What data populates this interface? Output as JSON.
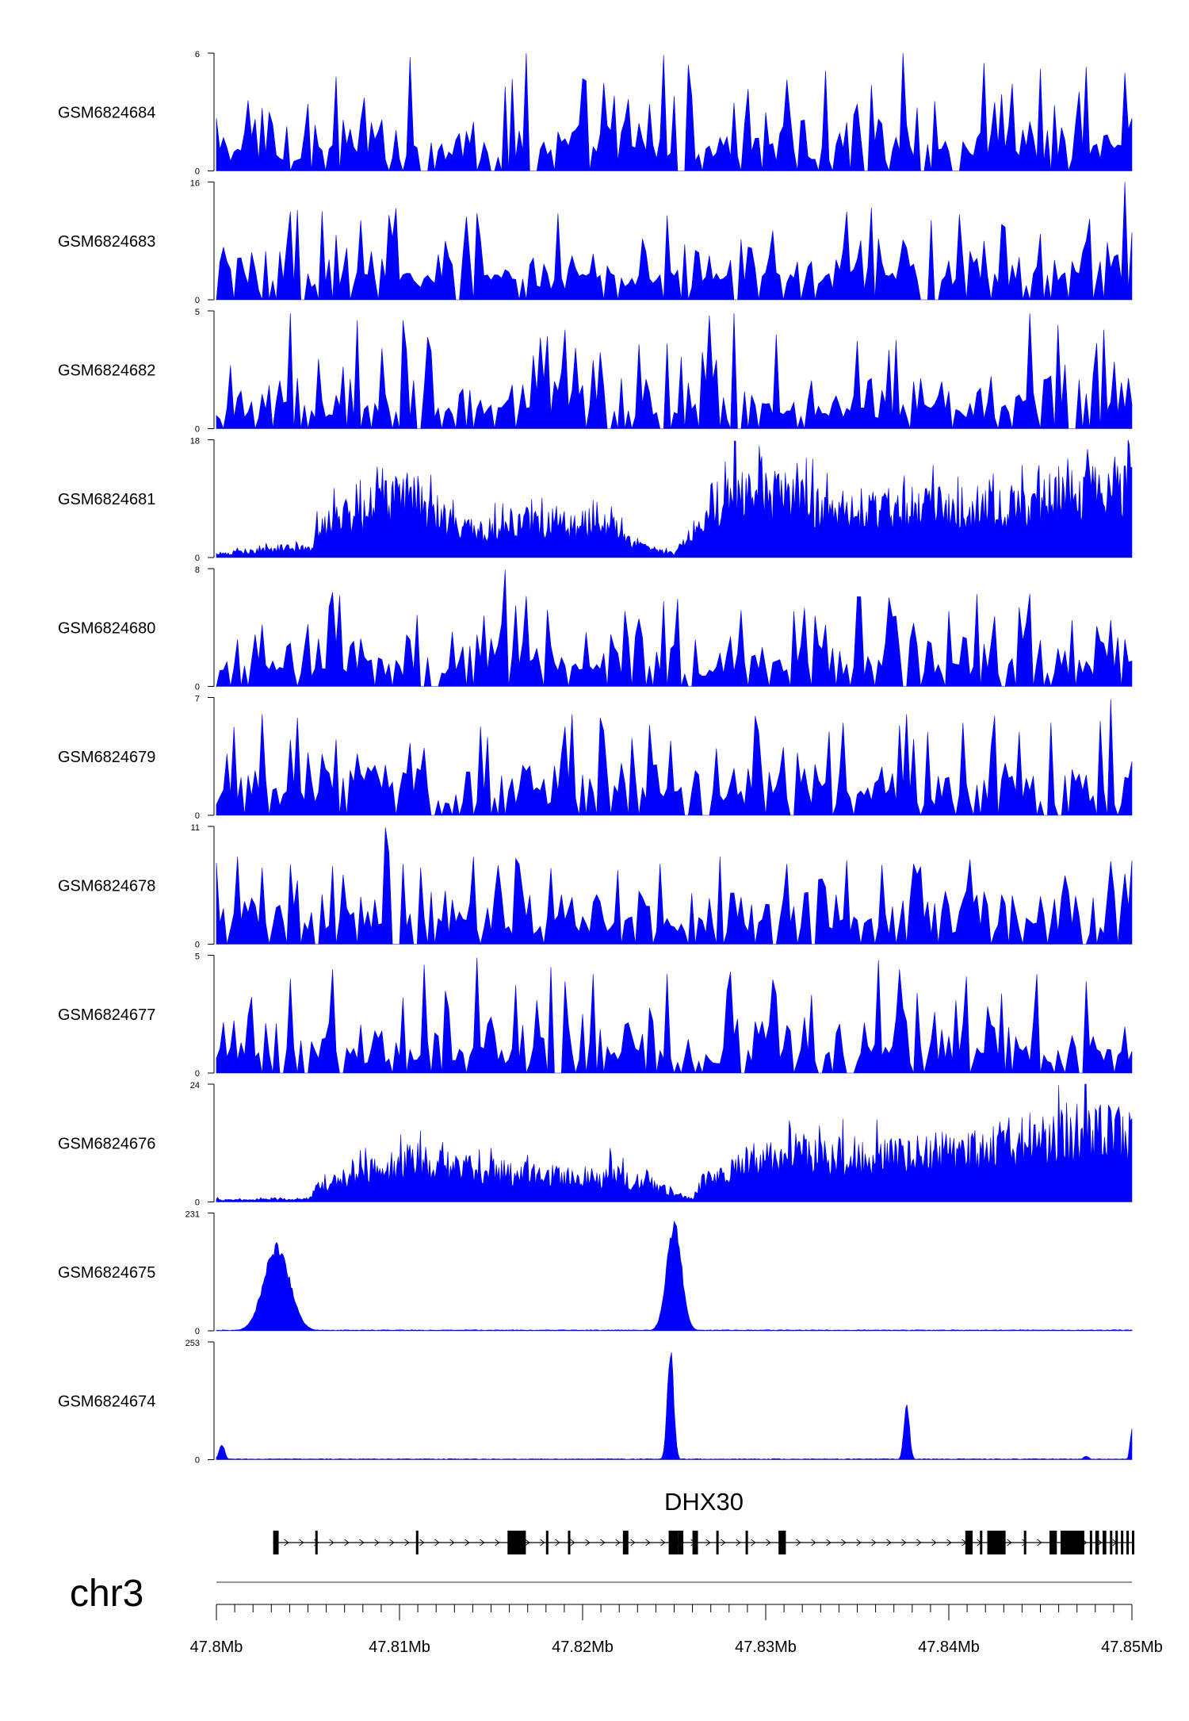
{
  "chart_data": {
    "type": "area",
    "chromosome": "chr3",
    "x_range_mb": [
      47.8,
      47.85
    ],
    "x_ticks": [
      {
        "value": 47.8,
        "label": "47.8Mb"
      },
      {
        "value": 47.81,
        "label": "47.81Mb"
      },
      {
        "value": 47.82,
        "label": "47.82Mb"
      },
      {
        "value": 47.83,
        "label": "47.83Mb"
      },
      {
        "value": 47.84,
        "label": "47.84Mb"
      },
      {
        "value": 47.85,
        "label": "47.85Mb"
      }
    ],
    "color": "#0000ff",
    "gene": {
      "name": "DHX30",
      "strand": "+",
      "start_mb": 47.8031,
      "end_mb": 47.85,
      "exons_mb": [
        [
          47.8031,
          47.8034
        ],
        [
          47.8054,
          47.8055
        ],
        [
          47.8109,
          47.811
        ],
        [
          47.8159,
          47.8169
        ],
        [
          47.818,
          47.8181
        ],
        [
          47.8192,
          47.8193
        ],
        [
          47.8222,
          47.8225
        ],
        [
          47.8247,
          47.8252
        ],
        [
          47.8252,
          47.8255
        ],
        [
          47.826,
          47.8263
        ],
        [
          47.8273,
          47.8274
        ],
        [
          47.8289,
          47.829
        ],
        [
          47.8307,
          47.8311
        ],
        [
          47.8409,
          47.8413
        ],
        [
          47.8417,
          47.8418
        ],
        [
          47.8421,
          47.8431
        ],
        [
          47.8441,
          47.8442
        ],
        [
          47.8455,
          47.8459
        ],
        [
          47.8461,
          47.8474
        ],
        [
          47.8477,
          47.8478
        ],
        [
          47.848,
          47.8482
        ],
        [
          47.8484,
          47.8486
        ],
        [
          47.8488,
          47.8489
        ],
        [
          47.8491,
          47.8492
        ],
        [
          47.8494,
          47.8495
        ],
        [
          47.8497,
          47.8498
        ],
        [
          47.85,
          47.8501
        ]
      ]
    },
    "series": [
      {
        "name": "GSM6824684",
        "ymax": 6,
        "profile": "sparse",
        "peaks": [
          [
            47.8025,
            3.2
          ],
          [
            47.8065,
            4.8
          ],
          [
            47.8105,
            5.8
          ],
          [
            47.817,
            6.0
          ],
          [
            47.8245,
            5.9
          ],
          [
            47.8258,
            5.4
          ],
          [
            47.8332,
            5.1
          ],
          [
            47.8375,
            6.0
          ],
          [
            47.842,
            5.5
          ],
          [
            47.845,
            5.2
          ],
          [
            47.8475,
            5.3
          ],
          [
            47.8496,
            5.0
          ]
        ]
      },
      {
        "name": "GSM6824683",
        "ymax": 16,
        "profile": "sparse",
        "peaks": [
          [
            47.804,
            12.0
          ],
          [
            47.8058,
            12.0
          ],
          [
            47.8095,
            11.5
          ],
          [
            47.8125,
            8.0
          ],
          [
            47.8205,
            6.0
          ],
          [
            47.827,
            6.0
          ],
          [
            47.8345,
            12.0
          ],
          [
            47.842,
            8.0
          ],
          [
            47.8475,
            8.0
          ],
          [
            47.8497,
            16.0
          ]
        ]
      },
      {
        "name": "GSM6824682",
        "ymax": 5,
        "profile": "sparse",
        "peaks": [
          [
            47.804,
            4.9
          ],
          [
            47.8076,
            4.6
          ],
          [
            47.8102,
            4.6
          ],
          [
            47.819,
            4.2
          ],
          [
            47.827,
            4.8
          ],
          [
            47.8282,
            4.9
          ],
          [
            47.8305,
            4.0
          ],
          [
            47.8445,
            4.9
          ],
          [
            47.846,
            4.4
          ],
          [
            47.8485,
            4.2
          ]
        ]
      },
      {
        "name": "GSM6824681",
        "ymax": 18,
        "profile": "broad",
        "base": [
          [
            47.8,
            0.5
          ],
          [
            47.804,
            1.5
          ],
          [
            47.8052,
            1.3
          ],
          [
            47.8055,
            5.0
          ],
          [
            47.808,
            7.0
          ],
          [
            47.8105,
            9.5
          ],
          [
            47.8115,
            7.0
          ],
          [
            47.814,
            4.0
          ],
          [
            47.817,
            5.0
          ],
          [
            47.82,
            5.0
          ],
          [
            47.822,
            5.0
          ],
          [
            47.8227,
            2.0
          ],
          [
            47.825,
            0.5
          ],
          [
            47.8258,
            3.0
          ],
          [
            47.827,
            8.0
          ],
          [
            47.829,
            9.5
          ],
          [
            47.831,
            9.0
          ],
          [
            47.834,
            7.0
          ],
          [
            47.837,
            7.5
          ],
          [
            47.84,
            7.5
          ],
          [
            47.843,
            7.5
          ],
          [
            47.846,
            9.0
          ],
          [
            47.8485,
            10.0
          ],
          [
            47.85,
            10.5
          ]
        ],
        "peaks": [
          [
            47.811,
            12.5
          ],
          [
            47.8283,
            17.8
          ],
          [
            47.83,
            13.0
          ],
          [
            47.846,
            14.0
          ],
          [
            47.8476,
            14.5
          ],
          [
            47.8496,
            14.0
          ]
        ]
      },
      {
        "name": "GSM6824680",
        "ymax": 8,
        "profile": "sparse",
        "peaks": [
          [
            47.8025,
            4.2
          ],
          [
            47.8067,
            3.2
          ],
          [
            47.8103,
            3.5
          ],
          [
            47.8158,
            7.9
          ],
          [
            47.8163,
            5.5
          ],
          [
            47.823,
            4.6
          ],
          [
            47.8315,
            5.1
          ],
          [
            47.835,
            6.1
          ],
          [
            47.838,
            4.3
          ],
          [
            47.8415,
            4.0
          ],
          [
            47.848,
            4.1
          ],
          [
            47.8497,
            3.2
          ]
        ]
      },
      {
        "name": "GSM6824679",
        "ymax": 7,
        "profile": "sparse",
        "peaks": [
          [
            47.8025,
            6.0
          ],
          [
            47.8045,
            5.8
          ],
          [
            47.8065,
            4.5
          ],
          [
            47.8105,
            4.3
          ],
          [
            47.8195,
            6.0
          ],
          [
            47.821,
            5.8
          ],
          [
            47.8295,
            5.9
          ],
          [
            47.8377,
            6.0
          ],
          [
            47.8425,
            5.9
          ],
          [
            47.8483,
            5.6
          ],
          [
            47.8488,
            6.9
          ],
          [
            47.85,
            3.2
          ]
        ]
      },
      {
        "name": "GSM6824678",
        "ymax": 11,
        "profile": "sparse",
        "peaks": [
          [
            47.807,
            6.5
          ],
          [
            47.8092,
            10.9
          ],
          [
            47.8125,
            5.0
          ],
          [
            47.8164,
            8.0
          ],
          [
            47.8242,
            7.5
          ],
          [
            47.8312,
            7.5
          ],
          [
            47.8383,
            6.5
          ],
          [
            47.841,
            5.0
          ],
          [
            47.847,
            4.5
          ],
          [
            47.85,
            7.8
          ]
        ]
      },
      {
        "name": "GSM6824677",
        "ymax": 5,
        "profile": "sparse",
        "peaks": [
          [
            47.804,
            4.0
          ],
          [
            47.8064,
            4.4
          ],
          [
            47.8113,
            4.6
          ],
          [
            47.8142,
            4.9
          ],
          [
            47.8182,
            4.5
          ],
          [
            47.8206,
            4.2
          ],
          [
            47.8247,
            4.2
          ],
          [
            47.828,
            4.3
          ],
          [
            47.8362,
            4.8
          ],
          [
            47.8373,
            4.4
          ],
          [
            47.841,
            4.1
          ],
          [
            47.8448,
            4.2
          ],
          [
            47.8475,
            3.9
          ]
        ]
      },
      {
        "name": "GSM6824676",
        "ymax": 24,
        "profile": "broad",
        "base": [
          [
            47.8,
            0.5
          ],
          [
            47.805,
            0.5
          ],
          [
            47.8055,
            3.0
          ],
          [
            47.808,
            6.0
          ],
          [
            47.811,
            8.0
          ],
          [
            47.813,
            7.0
          ],
          [
            47.816,
            6.0
          ],
          [
            47.819,
            5.0
          ],
          [
            47.822,
            5.0
          ],
          [
            47.825,
            2.0
          ],
          [
            47.826,
            0.5
          ],
          [
            47.8265,
            4.0
          ],
          [
            47.829,
            8.0
          ],
          [
            47.831,
            10.0
          ],
          [
            47.834,
            9.0
          ],
          [
            47.837,
            9.0
          ],
          [
            47.84,
            10.0
          ],
          [
            47.843,
            11.0
          ],
          [
            47.846,
            13.0
          ],
          [
            47.848,
            14.0
          ],
          [
            47.85,
            13.0
          ]
        ],
        "peaks": [
          [
            47.811,
            12.0
          ],
          [
            47.815,
            11.0
          ],
          [
            47.8215,
            11.0
          ],
          [
            47.8313,
            15.0
          ],
          [
            47.846,
            23.8
          ],
          [
            47.847,
            20.0
          ],
          [
            47.848,
            19.0
          ]
        ]
      },
      {
        "name": "GSM6824675",
        "ymax": 231,
        "profile": "peaks",
        "peaks": [
          [
            47.8033,
            175,
            0.0007
          ],
          [
            47.825,
            225,
            0.0004
          ]
        ]
      },
      {
        "name": "GSM6824674",
        "ymax": 253,
        "profile": "peaks",
        "peaks": [
          [
            47.8003,
            35,
            0.00015
          ],
          [
            47.8248,
            253,
            0.00017
          ],
          [
            47.8377,
            125,
            0.00015
          ],
          [
            47.8475,
            8,
            0.00015
          ],
          [
            47.85,
            70,
            0.0001
          ]
        ]
      }
    ]
  }
}
